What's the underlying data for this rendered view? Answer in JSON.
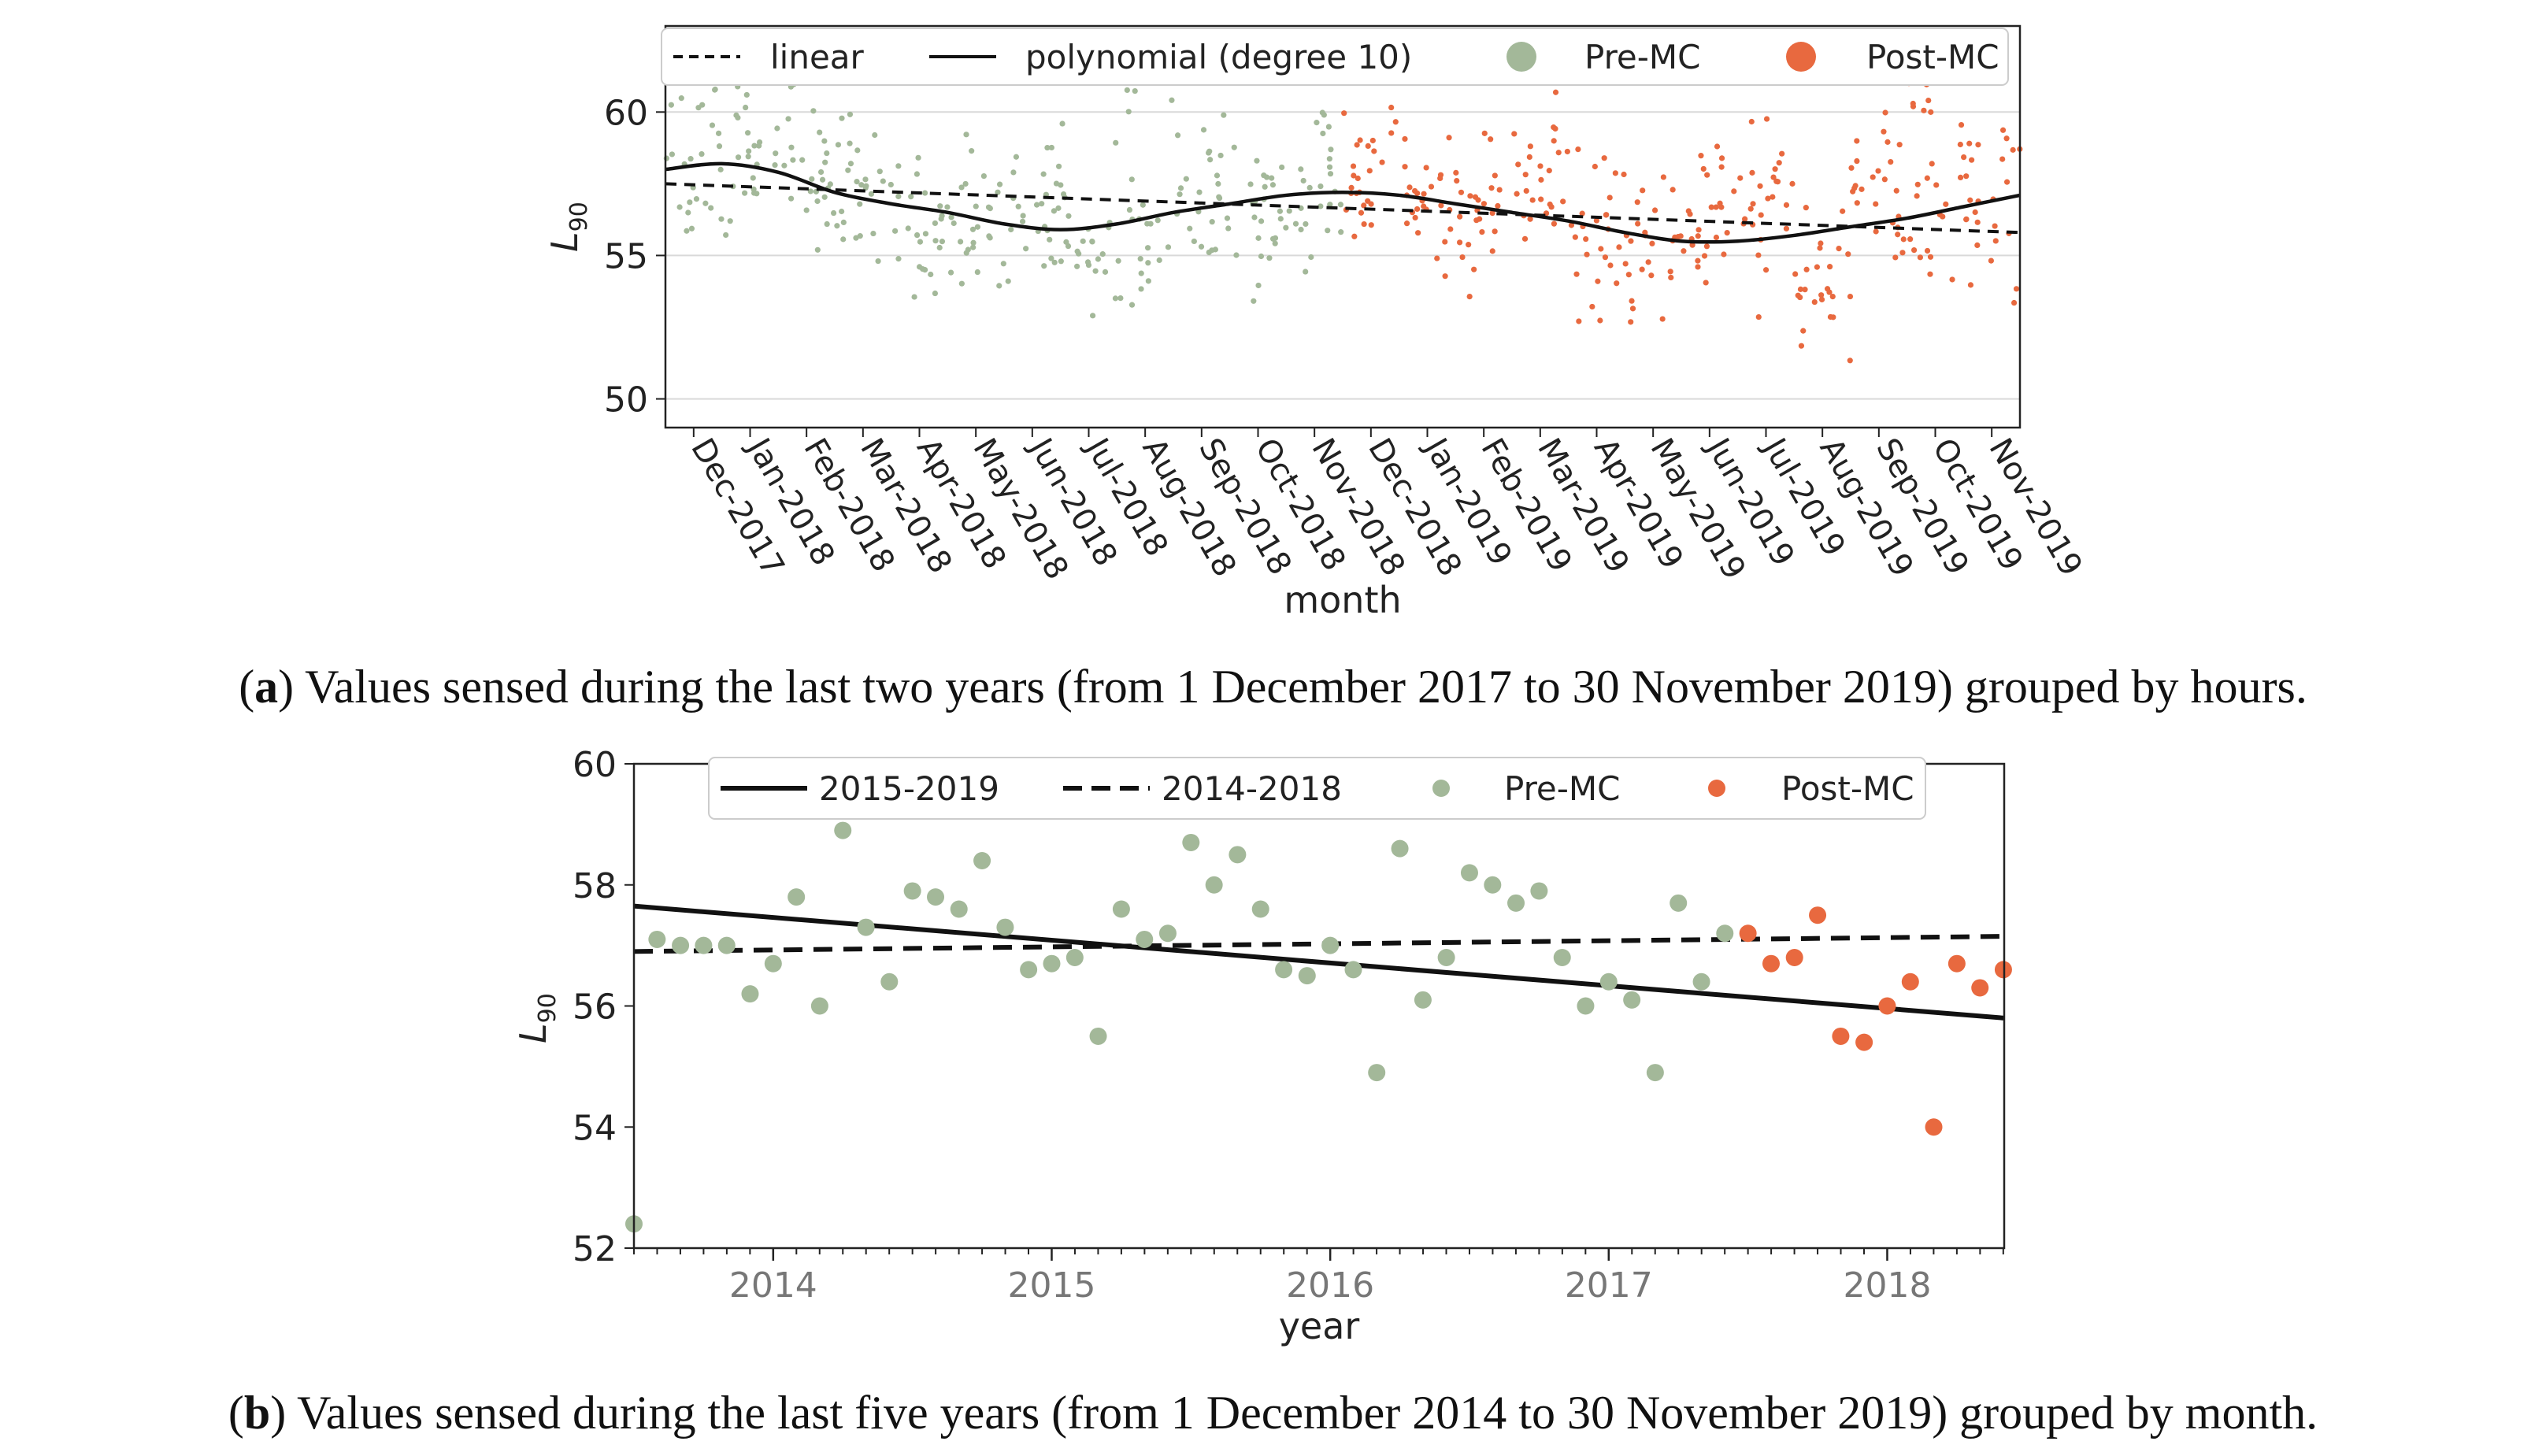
{
  "colors": {
    "pre": "#a3b899",
    "post": "#e8693f",
    "line": "#111111",
    "grid": "#d9d9d9",
    "legend_border": "#cccccc"
  },
  "chart_data": [
    {
      "id": "a",
      "type": "scatter",
      "title": "",
      "xlabel": "month",
      "ylabel": "L",
      "ylabel_sub": "90",
      "ylim": [
        49,
        63
      ],
      "yticks": [
        "50",
        "55",
        "60"
      ],
      "ytick_values": [
        50,
        55,
        60
      ],
      "xlim": [
        0,
        24
      ],
      "grid": "y",
      "legend_placement": "top",
      "categories": [
        "Dec-2017",
        "Jan-2018",
        "Feb-2018",
        "Mar-2018",
        "Apr-2018",
        "May-2018",
        "Jun-2018",
        "Jul-2018",
        "Aug-2018",
        "Sep-2018",
        "Oct-2018",
        "Nov-2018",
        "Dec-2018",
        "Jan-2019",
        "Feb-2019",
        "Mar-2019",
        "Apr-2019",
        "May-2019",
        "Jun-2019",
        "Jul-2019",
        "Aug-2019",
        "Sep-2019",
        "Oct-2019",
        "Nov-2019"
      ],
      "legend": [
        {
          "label": "linear",
          "kind": "dashed"
        },
        {
          "label": "polynomial (degree 10)",
          "kind": "solid"
        },
        {
          "label": "Pre-MC",
          "kind": "pre"
        },
        {
          "label": "Post-MC",
          "kind": "post"
        }
      ],
      "series": [
        {
          "name": "Pre-MC",
          "x_range": [
            0,
            12
          ]
        },
        {
          "name": "Post-MC",
          "x_range": [
            12,
            24
          ]
        },
        {
          "name": "linear",
          "x": [
            0,
            24
          ],
          "y": [
            57.5,
            55.8
          ]
        },
        {
          "name": "polynomial (degree 10)",
          "x": [
            0,
            1,
            2,
            3,
            4,
            5,
            6,
            7,
            8,
            9,
            10,
            11,
            12,
            13,
            14,
            15,
            16,
            17,
            18,
            19,
            20,
            21,
            22,
            23,
            24
          ],
          "y": [
            58.0,
            58.2,
            57.9,
            57.2,
            56.8,
            56.5,
            56.1,
            55.9,
            56.1,
            56.5,
            56.8,
            57.1,
            57.2,
            57.1,
            56.8,
            56.5,
            56.2,
            55.8,
            55.5,
            55.5,
            55.7,
            56.0,
            56.3,
            56.7,
            57.1
          ]
        }
      ],
      "monthly_center": [
        58.4,
        58.5,
        58.0,
        57.0,
        56.0,
        56.0,
        56.5,
        55.6,
        55.2,
        57.0,
        56.5,
        57.5,
        57.4,
        56.6,
        56.8,
        57.2,
        56.0,
        55.0,
        56.0,
        56.5,
        54.3,
        57.0,
        56.2,
        56.8
      ]
    },
    {
      "id": "b",
      "type": "scatter",
      "title": "",
      "xlabel": "year",
      "ylabel": "L",
      "ylabel_sub": "90",
      "ylim": [
        52,
        60
      ],
      "yticks": [
        "52",
        "54",
        "56",
        "58",
        "60"
      ],
      "ytick_values": [
        52,
        54,
        56,
        58,
        60
      ],
      "xlim": [
        2013.5,
        2018.42
      ],
      "xticks": [
        "2014",
        "2015",
        "2016",
        "2017",
        "2018"
      ],
      "xtick_values": [
        2014,
        2015,
        2016,
        2017,
        2018
      ],
      "grid": "off",
      "legend_placement": "top",
      "legend": [
        {
          "label": "2015-2019",
          "kind": "solid"
        },
        {
          "label": "2014-2018",
          "kind": "dashed"
        },
        {
          "label": "Pre-MC",
          "kind": "pre"
        },
        {
          "label": "Post-MC",
          "kind": "post"
        }
      ],
      "series": [
        {
          "name": "Pre-MC",
          "x": [
            2013.5,
            2013.583,
            2013.667,
            2013.75,
            2013.833,
            2013.917,
            2014.0,
            2014.083,
            2014.167,
            2014.25,
            2014.333,
            2014.417,
            2014.5,
            2014.583,
            2014.667,
            2014.75,
            2014.833,
            2014.917,
            2015.0,
            2015.083,
            2015.167,
            2015.25,
            2015.333,
            2015.417,
            2015.5,
            2015.583,
            2015.667,
            2015.75,
            2015.833,
            2015.917,
            2016.0,
            2016.083,
            2016.167,
            2016.25,
            2016.333,
            2016.417,
            2016.5,
            2016.583,
            2016.667,
            2016.75,
            2016.833,
            2016.917,
            2017.0,
            2017.083,
            2017.167,
            2017.25,
            2017.333,
            2017.417
          ],
          "y": [
            52.4,
            57.1,
            57.0,
            57.0,
            57.0,
            56.2,
            56.7,
            57.8,
            56.0,
            58.9,
            57.3,
            56.4,
            57.9,
            57.8,
            57.6,
            58.4,
            57.3,
            56.6,
            56.7,
            56.8,
            55.5,
            57.6,
            57.1,
            57.2,
            58.7,
            58.0,
            58.5,
            57.6,
            56.6,
            56.5,
            57.0,
            56.6,
            54.9,
            58.6,
            56.1,
            56.8,
            58.2,
            58.0,
            57.7,
            57.9,
            56.8,
            56.0,
            56.4,
            56.1,
            54.9,
            57.7,
            56.4,
            57.2
          ]
        },
        {
          "name": "Post-MC",
          "x": [
            2017.5,
            2017.583,
            2017.667,
            2017.75,
            2017.833,
            2017.917,
            2018.0,
            2018.083,
            2018.167,
            2018.25,
            2018.333,
            2018.417
          ],
          "y": [
            57.2,
            56.7,
            56.8,
            57.5,
            55.5,
            55.4,
            56.0,
            56.4,
            54.0,
            56.7,
            56.3,
            56.6
          ]
        },
        {
          "name": "2015-2019",
          "x": [
            2013.5,
            2018.42
          ],
          "y": [
            57.65,
            55.8
          ]
        },
        {
          "name": "2014-2018",
          "x": [
            2013.5,
            2018.42
          ],
          "y": [
            56.9,
            57.15
          ]
        }
      ]
    }
  ],
  "captions": {
    "a_label": "a",
    "a_text": "Values sensed during the last two years (from 1 December 2017 to 30 November 2019) grouped by hours.",
    "b_label": "b",
    "b_text": "Values sensed during the last five years (from 1 December 2014 to 30 November 2019) grouped by month."
  }
}
